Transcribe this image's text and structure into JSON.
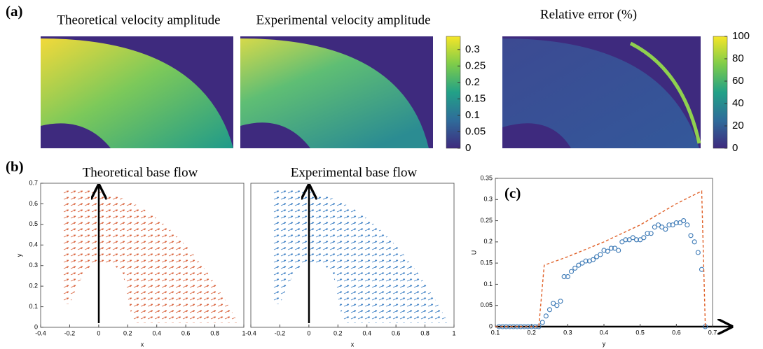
{
  "panel_labels": [
    "(a)",
    "(b)",
    "(c)"
  ],
  "chart_data": [
    {
      "type": "heatmap",
      "title": "Theoretical velocity amplitude"
    },
    {
      "type": "heatmap",
      "title": "Experimental velocity amplitude",
      "colorbar": {
        "lim": [
          0,
          0.34
        ],
        "ticks": [
          0,
          0.05,
          0.1,
          0.15,
          0.2,
          0.25,
          0.3
        ]
      }
    },
    {
      "type": "heatmap",
      "title": "Relative error (%)",
      "colorbar": {
        "lim": [
          0,
          100
        ],
        "ticks": [
          0,
          20,
          40,
          60,
          80,
          100
        ]
      }
    },
    {
      "type": "quiver",
      "title": "Theoretical base flow",
      "xlabel": "x",
      "ylabel": "y",
      "color": "#d9623b",
      "xlim": [
        -0.4,
        1
      ],
      "ylim": [
        0,
        0.7
      ],
      "xticks": [
        -0.4,
        -0.2,
        0,
        0.2,
        0.4,
        0.6,
        0.8,
        1
      ],
      "yticks": [
        0,
        0.1,
        0.2,
        0.3,
        0.4,
        0.5,
        0.6,
        0.7
      ]
    },
    {
      "type": "quiver",
      "title": "Experimental base flow",
      "xlabel": "x",
      "color": "#3b7fc4",
      "xlim": [
        -0.4,
        1
      ],
      "ylim": [
        0,
        0.7
      ],
      "xticks": [
        -0.4,
        -0.2,
        0,
        0.2,
        0.4,
        0.6,
        0.8,
        1
      ]
    },
    {
      "type": "scatter",
      "xlabel": "y",
      "ylabel": "U",
      "xlim": [
        0.1,
        0.7
      ],
      "ylim": [
        0,
        0.35
      ],
      "xticks": [
        0.1,
        0.2,
        0.3,
        0.4,
        0.5,
        0.6,
        0.7
      ],
      "yticks": [
        0,
        0.05,
        0.1,
        0.15,
        0.2,
        0.25,
        0.3,
        0.35
      ],
      "series": [
        {
          "color": "#3a78b5",
          "style": "marker",
          "x": [
            0.11,
            0.12,
            0.13,
            0.14,
            0.15,
            0.16,
            0.17,
            0.18,
            0.19,
            0.2,
            0.21,
            0.22,
            0.23,
            0.24,
            0.25,
            0.26,
            0.27,
            0.28,
            0.29,
            0.3,
            0.31,
            0.32,
            0.33,
            0.34,
            0.35,
            0.36,
            0.37,
            0.38,
            0.39,
            0.4,
            0.41,
            0.42,
            0.43,
            0.44,
            0.45,
            0.46,
            0.47,
            0.48,
            0.49,
            0.5,
            0.51,
            0.52,
            0.53,
            0.54,
            0.55,
            0.56,
            0.57,
            0.58,
            0.59,
            0.6,
            0.61,
            0.62,
            0.63,
            0.64,
            0.65,
            0.66,
            0.67,
            0.68
          ],
          "values": [
            0,
            0,
            0,
            0,
            0,
            0,
            0,
            0,
            0,
            0,
            0,
            0,
            0.01,
            0.025,
            0.04,
            0.055,
            0.05,
            0.06,
            0.118,
            0.118,
            0.13,
            0.138,
            0.145,
            0.15,
            0.155,
            0.155,
            0.158,
            0.165,
            0.17,
            0.18,
            0.178,
            0.185,
            0.185,
            0.18,
            0.2,
            0.205,
            0.205,
            0.21,
            0.205,
            0.205,
            0.21,
            0.22,
            0.22,
            0.235,
            0.24,
            0.235,
            0.23,
            0.24,
            0.24,
            0.245,
            0.245,
            0.25,
            0.24,
            0.215,
            0.2,
            0.175,
            0.135,
            0
          ]
        },
        {
          "color": "#e0622a",
          "style": "dashed",
          "x": [
            0.1,
            0.22,
            0.235,
            0.3,
            0.4,
            0.5,
            0.6,
            0.67,
            0.68
          ],
          "values": [
            0,
            0,
            0.145,
            0.165,
            0.2,
            0.24,
            0.29,
            0.32,
            0
          ]
        }
      ]
    }
  ]
}
